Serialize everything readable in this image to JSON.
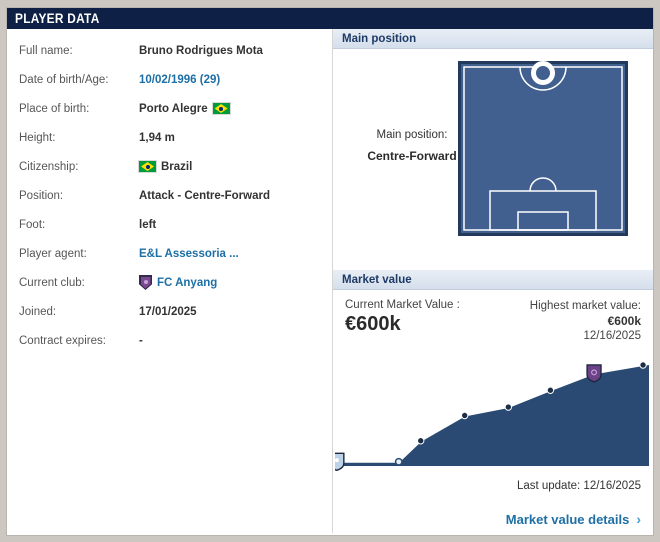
{
  "header": {
    "title": "PLAYER DATA"
  },
  "player_info": {
    "rows": [
      {
        "label": "Full name:",
        "value": "Bruno Rodrigues Mota",
        "style": "bold"
      },
      {
        "label": "Date of birth/Age:",
        "value": "10/02/1996 (29)",
        "style": "link"
      },
      {
        "label": "Place of birth:",
        "value": "Porto Alegre",
        "style": "bold",
        "flag_after": "brazil"
      },
      {
        "label": "Height:",
        "value": "1,94 m",
        "style": "bold"
      },
      {
        "label": "Citizenship:",
        "value": "Brazil",
        "style": "bold",
        "flag_before": "brazil"
      },
      {
        "label": "Position:",
        "value": "Attack - Centre-Forward",
        "style": "bold"
      },
      {
        "label": "Foot:",
        "value": "left",
        "style": "bold"
      },
      {
        "label": "Player agent:",
        "value": "E&L Assessoria ...",
        "style": "link"
      },
      {
        "label": "Current club:",
        "value": "FC Anyang",
        "style": "link",
        "crest_before": true
      },
      {
        "label": "Joined:",
        "value": "17/01/2025",
        "style": "bold"
      },
      {
        "label": "Contract expires:",
        "value": "-",
        "style": "bold"
      }
    ]
  },
  "main_position": {
    "section_title": "Main position",
    "label": "Main position:",
    "value": "Centre-Forward"
  },
  "market_value": {
    "section_title": "Market value",
    "current_label": "Current Market Value :",
    "current_value": "€600k",
    "highest_label": "Highest market value:",
    "highest_value": "€600k",
    "highest_date": "12/16/2025",
    "last_update": "Last update: 12/16/2025",
    "details_label": "Market value details",
    "details_chevron": "›"
  },
  "chart_data": {
    "type": "area",
    "title": "Market value history",
    "series_name": "Market value",
    "unit": "EUR thousand",
    "values": [
      25,
      25,
      150,
      300,
      350,
      450,
      550,
      600
    ],
    "x_positions_pct": [
      0.6,
      20.3,
      27.3,
      41.3,
      55.2,
      68.6,
      82.5,
      98.1
    ],
    "point_styles": [
      "crest-light",
      "light",
      "dark",
      "dark",
      "dark",
      "dark",
      "crest-purple",
      "dark"
    ],
    "markers": [
      {
        "index": 0,
        "type": "club-crest",
        "color": "#bdd2e4"
      },
      {
        "index": 6,
        "type": "club-crest",
        "club": "FC Anyang",
        "color": "#6d4187"
      }
    ],
    "ylim": [
      0,
      650
    ],
    "last_value_label": "€600k",
    "last_date": "12/16/2025",
    "area_color": "#2b4a73",
    "line_color": "#ffffff",
    "point_color": "#1c2f47",
    "grid": false,
    "legend": false
  },
  "colors": {
    "header_navy": "#0e2045",
    "section_header_text": "#1e3a66",
    "link_blue": "#1d6fa5",
    "pitch_fill": "#41608f",
    "pitch_border": "#243a5c"
  }
}
